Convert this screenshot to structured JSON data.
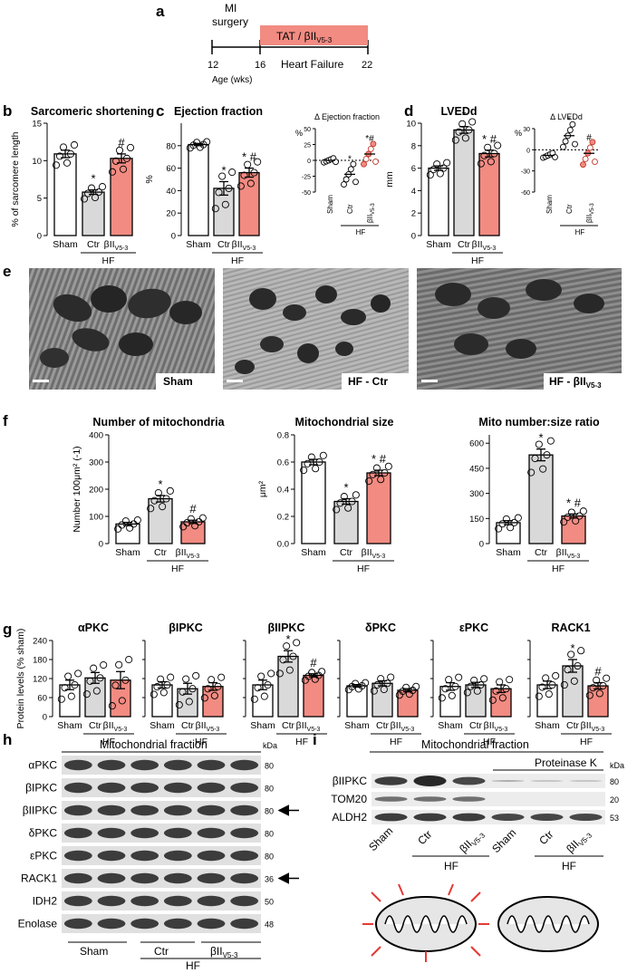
{
  "panels": {
    "a": "a",
    "b": "b",
    "c": "c",
    "d": "d",
    "e": "e",
    "f": "f",
    "g": "g",
    "h": "h",
    "i": "i"
  },
  "timeline": {
    "event_line1": "MI",
    "event_line2": "surgery",
    "treatment": "TAT / βII",
    "treatment_sub": "V5-3",
    "phase": "Heart Failure",
    "ages": [
      "12",
      "16",
      "22"
    ],
    "age_label": "Age (wks)"
  },
  "groups": {
    "sham": "Sham",
    "ctr": "Ctr",
    "bii": "βII",
    "bii_sub": "V5-3",
    "hf": "HF"
  },
  "colors": {
    "sham": "#ffffff",
    "ctr": "#d9d9d9",
    "bii": "#f28b82",
    "edge": "#000000"
  },
  "marks": {
    "star": "*",
    "hash": "#",
    "star_hash": "* #"
  },
  "em": {
    "labels": [
      "Sham",
      "HF - Ctr",
      "HF - βII"
    ],
    "label_sub": "V5-3"
  },
  "blot_h": {
    "title": "Mitochondrial fraction",
    "kda": "kDa",
    "rows": [
      {
        "label": "αPKC",
        "kda": "80",
        "arrow": false
      },
      {
        "label": "βIPKC",
        "kda": "80",
        "arrow": false
      },
      {
        "label": "βIIPKC",
        "kda": "80",
        "arrow": true
      },
      {
        "label": "δPKC",
        "kda": "80",
        "arrow": false
      },
      {
        "label": "εPKC",
        "kda": "80",
        "arrow": false
      },
      {
        "label": "RACK1",
        "kda": "36",
        "arrow": true
      },
      {
        "label": "IDH2",
        "kda": "50",
        "arrow": false
      },
      {
        "label": "Enolase",
        "kda": "48",
        "arrow": false
      }
    ]
  },
  "blot_i": {
    "title": "Mitochondrial fraction",
    "protease": "Proteinase K",
    "kda": "kDa",
    "rows": [
      {
        "label": "βIIPKC",
        "kda": "80"
      },
      {
        "label": "TOM20",
        "kda": "20"
      },
      {
        "label": "ALDH2",
        "kda": "53"
      }
    ]
  },
  "chart_data": [
    {
      "id": "b",
      "type": "bar",
      "title": "Sarcomeric shortening",
      "ylabel": "% of sarcomere length",
      "ylim": [
        0,
        15
      ],
      "yticks": [
        "0",
        "5",
        "10",
        "15"
      ],
      "categories": [
        "Sham",
        "Ctr",
        "βIIV5-3"
      ],
      "values": [
        10.9,
        5.8,
        10.3
      ],
      "sem": [
        0.5,
        0.3,
        0.6
      ],
      "sig": [
        "",
        "*",
        "#"
      ]
    },
    {
      "id": "c",
      "type": "bar",
      "title": "Ejection fraction",
      "ylabel": "%",
      "ylim": [
        0,
        100
      ],
      "yticks": [
        "0",
        "20",
        "40",
        "60",
        "80"
      ],
      "categories": [
        "Sham",
        "Ctr",
        "βIIV5-3"
      ],
      "values": [
        81,
        42,
        56
      ],
      "sem": [
        1,
        6,
        4
      ],
      "sig": [
        "",
        "*",
        "* #"
      ]
    },
    {
      "id": "c2",
      "type": "scatter",
      "title": "Δ Ejection fraction",
      "ylabel": "%",
      "ylim": [
        -50,
        50
      ],
      "yticks": [
        "50",
        "25",
        "0",
        "-25",
        "-50"
      ],
      "categories": [
        "Sham",
        "Ctr",
        "βIIV5-3"
      ],
      "values": [
        0,
        -22,
        10
      ],
      "sig": [
        "",
        "*",
        "*#"
      ]
    },
    {
      "id": "d",
      "type": "bar",
      "title": "LVEDd",
      "ylabel": "mm",
      "ylim": [
        0,
        10
      ],
      "yticks": [
        "0",
        "2",
        "4",
        "6",
        "8",
        "10"
      ],
      "categories": [
        "Sham",
        "Ctr",
        "βIIV5-3"
      ],
      "values": [
        6.0,
        9.4,
        7.3
      ],
      "sem": [
        0.2,
        0.3,
        0.3
      ],
      "sig": [
        "",
        "*",
        "* #"
      ]
    },
    {
      "id": "d2",
      "type": "scatter",
      "title": "Δ LVEDd",
      "ylabel": "%",
      "ylim": [
        -60,
        30
      ],
      "yticks": [
        "30",
        "0",
        "-30",
        "-60"
      ],
      "categories": [
        "Sham",
        "Ctr",
        "βIIV5-3"
      ],
      "values": [
        -8,
        20,
        -5
      ],
      "sig": [
        "",
        "*",
        "#"
      ]
    },
    {
      "id": "f1",
      "type": "bar",
      "title": "Number of mitochondria",
      "ylabel": "Number 100μm² (-1)",
      "ylim": [
        0,
        400
      ],
      "yticks": [
        "0",
        "100",
        "200",
        "300",
        "400"
      ],
      "categories": [
        "Sham",
        "Ctr",
        "βIIV5-3"
      ],
      "values": [
        72,
        165,
        80
      ],
      "sem": [
        6,
        12,
        6
      ],
      "sig": [
        "",
        "*",
        "#"
      ]
    },
    {
      "id": "f2",
      "type": "bar",
      "title": "Mitochondrial size",
      "ylabel": "μm²",
      "ylim": [
        0,
        0.8
      ],
      "yticks": [
        "0.0",
        "0.2",
        "0.4",
        "0.6",
        "0.8"
      ],
      "categories": [
        "Sham",
        "Ctr",
        "βIIV5-3"
      ],
      "values": [
        0.6,
        0.31,
        0.52
      ],
      "sem": [
        0.02,
        0.02,
        0.02
      ],
      "sig": [
        "",
        "*",
        "* #"
      ]
    },
    {
      "id": "f3",
      "type": "bar",
      "title": "Mito number:size ratio",
      "ylabel": "",
      "ylim": [
        0,
        650
      ],
      "yticks": [
        "0",
        "150",
        "300",
        "450",
        "600"
      ],
      "categories": [
        "Sham",
        "Ctr",
        "βIIV5-3"
      ],
      "values": [
        125,
        530,
        165
      ],
      "sem": [
        12,
        35,
        12
      ],
      "sig": [
        "",
        "*",
        "* #"
      ]
    },
    {
      "id": "g1",
      "type": "bar",
      "title": "αPKC",
      "ylabel": "Protein levels (% sham)",
      "ylim": [
        0,
        240
      ],
      "yticks": [
        "0",
        "60",
        "120",
        "180",
        "240"
      ],
      "categories": [
        "Sham",
        "Ctr",
        "βIIV5-3"
      ],
      "values": [
        100,
        122,
        115
      ],
      "sem": [
        15,
        17,
        27
      ],
      "sig": [
        "",
        "",
        ""
      ]
    },
    {
      "id": "g2",
      "type": "bar",
      "title": "βIPKC",
      "ylabel": "",
      "ylim": [
        0,
        240
      ],
      "yticks": [],
      "categories": [
        "Sham",
        "Ctr",
        "βIIV5-3"
      ],
      "values": [
        100,
        88,
        95
      ],
      "sem": [
        10,
        17,
        12
      ],
      "sig": [
        "",
        "",
        ""
      ]
    },
    {
      "id": "g3",
      "type": "bar",
      "title": "βIIPKC",
      "ylabel": "",
      "ylim": [
        0,
        240
      ],
      "yticks": [],
      "categories": [
        "Sham",
        "Ctr",
        "βIIV5-3"
      ],
      "values": [
        100,
        190,
        130
      ],
      "sem": [
        15,
        18,
        5
      ],
      "sig": [
        "",
        "*",
        "#"
      ]
    },
    {
      "id": "g4",
      "type": "bar",
      "title": "δPKC",
      "ylabel": "",
      "ylim": [
        0,
        240
      ],
      "yticks": [],
      "categories": [
        "Sham",
        "Ctr",
        "βIIV5-3"
      ],
      "values": [
        97,
        105,
        83
      ],
      "sem": [
        4,
        8,
        5
      ],
      "sig": [
        "",
        "",
        ""
      ]
    },
    {
      "id": "g5",
      "type": "bar",
      "title": "εPKC",
      "ylabel": "",
      "ylim": [
        0,
        240
      ],
      "yticks": [],
      "categories": [
        "Sham",
        "Ctr",
        "βIIV5-3"
      ],
      "values": [
        95,
        100,
        88
      ],
      "sem": [
        12,
        8,
        12
      ],
      "sig": [
        "",
        "",
        ""
      ]
    },
    {
      "id": "g6",
      "type": "bar",
      "title": "RACK1",
      "ylabel": "",
      "ylim": [
        0,
        240
      ],
      "yticks": [],
      "categories": [
        "Sham",
        "Ctr",
        "βIIV5-3"
      ],
      "values": [
        100,
        160,
        97
      ],
      "sem": [
        12,
        20,
        10
      ],
      "sig": [
        "",
        "*",
        "#"
      ]
    }
  ]
}
